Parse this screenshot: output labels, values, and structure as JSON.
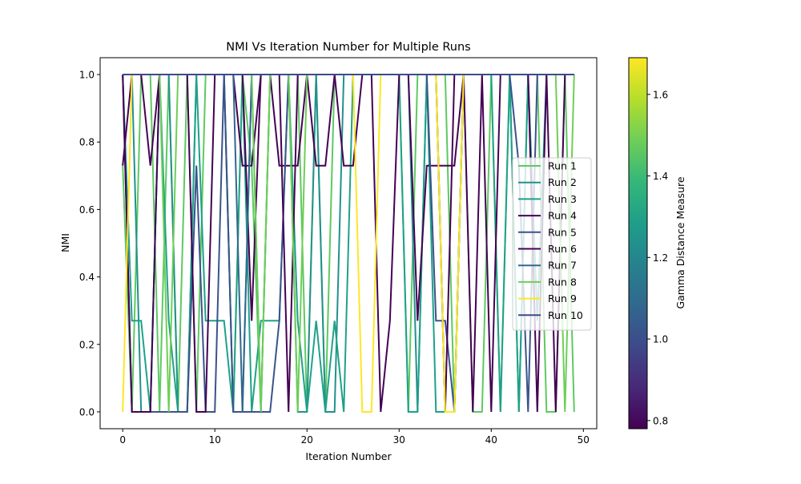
{
  "chart_data": {
    "type": "line",
    "title": "NMI Vs Iteration Number for Multiple Runs",
    "xlabel": "Iteration Number",
    "ylabel": "NMI",
    "xlim": [
      -2.45,
      51.45
    ],
    "ylim": [
      -0.05,
      1.05
    ],
    "xticks": [
      0,
      10,
      20,
      30,
      40,
      50
    ],
    "yticks": [
      0.0,
      0.2,
      0.4,
      0.6,
      0.8,
      1.0
    ],
    "grid": false,
    "legend": "right",
    "x": [
      0,
      1,
      2,
      3,
      4,
      5,
      6,
      7,
      8,
      9,
      10,
      11,
      12,
      13,
      14,
      15,
      16,
      17,
      18,
      19,
      20,
      21,
      22,
      23,
      24,
      25,
      26,
      27,
      28,
      29,
      30,
      31,
      32,
      33,
      34,
      35,
      36,
      37,
      38,
      39,
      40,
      41,
      42,
      43,
      44,
      45,
      46,
      47,
      48,
      49
    ],
    "series": [
      {
        "name": "Run 1",
        "color": "#5ec962",
        "values": [
          0.73,
          0,
          1,
          1,
          0,
          1,
          0,
          1,
          0,
          1,
          1,
          1,
          0,
          1,
          0.73,
          0,
          1,
          1,
          1,
          1,
          0,
          1,
          0,
          1,
          1,
          1,
          1,
          1,
          1,
          1,
          1,
          0,
          1,
          1,
          1,
          1,
          0,
          1,
          0,
          0,
          1,
          0,
          1,
          1,
          1,
          1,
          0,
          0,
          1,
          0
        ]
      },
      {
        "name": "Run 2",
        "color": "#21918c",
        "values": [
          1,
          1,
          0,
          0,
          1,
          1,
          0,
          0,
          1,
          1,
          1,
          1,
          0,
          0,
          1,
          0,
          1,
          1,
          1,
          0,
          0,
          1,
          0,
          0,
          1,
          1,
          1,
          1,
          1,
          1,
          1,
          1,
          0,
          1,
          1,
          0,
          0,
          1,
          1,
          1,
          1,
          1,
          1,
          0,
          1,
          1,
          1,
          1,
          1,
          1
        ]
      },
      {
        "name": "Run 3",
        "color": "#1fa188",
        "values": [
          1,
          0.27,
          0.27,
          0,
          1,
          0.27,
          0,
          0,
          1,
          0.27,
          0.27,
          0.27,
          0,
          1,
          0,
          0.27,
          0.27,
          0.27,
          1,
          0.27,
          0,
          0.27,
          0,
          0.27,
          0,
          1,
          1,
          1,
          1,
          1,
          1,
          0,
          0,
          1,
          0,
          0,
          0,
          1,
          1,
          1,
          1,
          0,
          1,
          0,
          1,
          0.27,
          1,
          1,
          1,
          1
        ]
      },
      {
        "name": "Run 4",
        "color": "#440154",
        "values": [
          0.73,
          1,
          1,
          0.73,
          1,
          1,
          1,
          1,
          1,
          1,
          1,
          1,
          1,
          0.73,
          0.73,
          1,
          1,
          0.73,
          0.73,
          0.73,
          1,
          0.73,
          0.73,
          1,
          0.73,
          0.73,
          1,
          1,
          1,
          1,
          1,
          1,
          0.27,
          0.73,
          0.73,
          0.73,
          0.73,
          1,
          1,
          1,
          1,
          1,
          1,
          1,
          1,
          1,
          1,
          1,
          1,
          1
        ]
      },
      {
        "name": "Run 5",
        "color": "#3b528b",
        "values": [
          1,
          0,
          0,
          0,
          0,
          0,
          0,
          0,
          0.73,
          0,
          0,
          1,
          0,
          0,
          0,
          0,
          0,
          0.27,
          1,
          1,
          1,
          1,
          1,
          1,
          1,
          1,
          1,
          1,
          1,
          1,
          1,
          1,
          1,
          1,
          0.27,
          0.27,
          0,
          1,
          1,
          1,
          1,
          1,
          1,
          0.73,
          0,
          1,
          1,
          1,
          1,
          1
        ]
      },
      {
        "name": "Run 6",
        "color": "#440154",
        "values": [
          1,
          0,
          0,
          0,
          1,
          1,
          1,
          1,
          0,
          0,
          1,
          1,
          1,
          1,
          0.27,
          1,
          1,
          1,
          0,
          1,
          1,
          1,
          1,
          1,
          1,
          1,
          1,
          1,
          0,
          0.27,
          1,
          1,
          1,
          1,
          1,
          0,
          1,
          1,
          0,
          1,
          0,
          1,
          1,
          1,
          1,
          0,
          1,
          0,
          1,
          1
        ]
      },
      {
        "name": "Run 7",
        "color": "#31688e",
        "values": [
          1,
          1,
          1,
          1,
          1,
          1,
          1,
          1,
          1,
          1,
          1,
          1,
          1,
          0,
          1,
          1,
          1,
          1,
          1,
          1,
          1,
          1,
          1,
          1,
          1,
          1,
          1,
          1,
          1,
          1,
          1,
          1,
          1,
          1,
          1,
          1,
          1,
          1,
          1,
          1,
          1,
          1,
          1,
          1,
          1,
          1,
          1,
          1,
          1,
          1
        ]
      },
      {
        "name": "Run 8",
        "color": "#6ece58",
        "values": [
          1,
          1,
          1,
          1,
          1,
          0,
          1,
          1,
          1,
          1,
          1,
          1,
          1,
          1,
          1,
          0,
          1,
          1,
          1,
          0,
          1,
          1,
          1,
          1,
          1,
          1,
          1,
          1,
          1,
          1,
          1,
          1,
          1,
          1,
          1,
          1,
          1,
          1,
          1,
          1,
          1,
          1,
          1,
          1,
          1,
          1,
          1,
          1,
          0,
          1
        ]
      },
      {
        "name": "Run 9",
        "color": "#fde725",
        "values": [
          0,
          1,
          1,
          1,
          1,
          1,
          1,
          1,
          1,
          1,
          1,
          1,
          1,
          1,
          1,
          1,
          1,
          1,
          1,
          1,
          1,
          1,
          1,
          1,
          1,
          1,
          0,
          0,
          1,
          1,
          1,
          1,
          1,
          1,
          1,
          0,
          0,
          1,
          1,
          1,
          1,
          1,
          1,
          1,
          1,
          1,
          1,
          1,
          1,
          1
        ]
      },
      {
        "name": "Run 10",
        "color": "#3e4a89",
        "values": [
          1,
          1,
          1,
          1,
          1,
          1,
          1,
          1,
          1,
          1,
          1,
          1,
          1,
          1,
          1,
          1,
          1,
          1,
          1,
          1,
          1,
          1,
          1,
          1,
          1,
          1,
          1,
          1,
          1,
          1,
          1,
          1,
          1,
          1,
          1,
          1,
          1,
          1,
          1,
          1,
          1,
          1,
          1,
          1,
          1,
          1,
          1,
          1,
          1,
          1
        ]
      }
    ],
    "colorbar": {
      "label": "Gamma Distance Measure",
      "range": [
        0.78,
        1.69
      ],
      "ticks": [
        0.8,
        1.0,
        1.2,
        1.4,
        1.6
      ],
      "colormap": [
        "#440154",
        "#482878",
        "#3e4989",
        "#31688e",
        "#26828e",
        "#1f9e89",
        "#35b779",
        "#6ece58",
        "#b5de2b",
        "#fde725"
      ]
    }
  }
}
